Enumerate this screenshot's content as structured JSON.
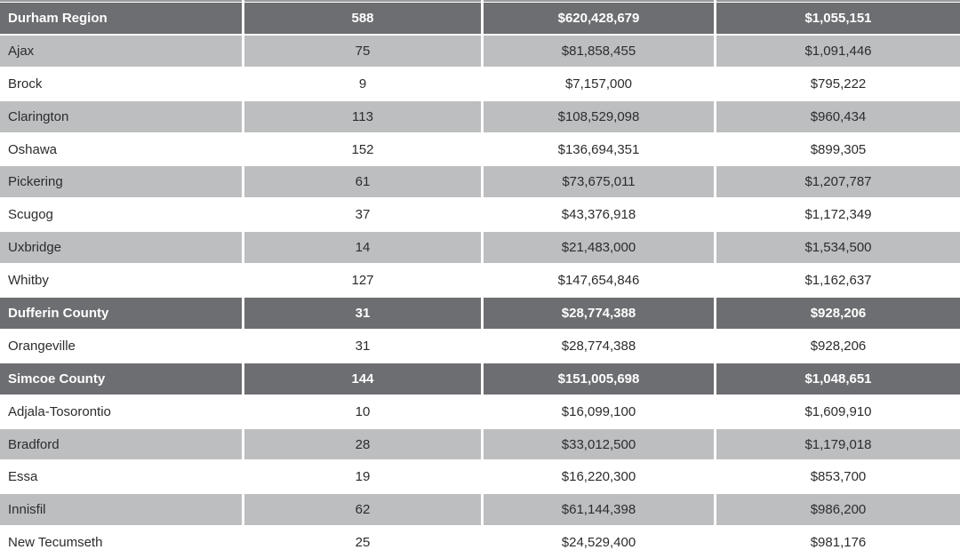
{
  "table": {
    "rows": [
      {
        "type": "header",
        "name": "Durham Region",
        "count": "588",
        "total": "$620,428,679",
        "average": "$1,055,151"
      },
      {
        "type": "shaded",
        "name": "Ajax",
        "count": "75",
        "total": "$81,858,455",
        "average": "$1,091,446"
      },
      {
        "type": "plain",
        "name": "Brock",
        "count": "9",
        "total": "$7,157,000",
        "average": "$795,222"
      },
      {
        "type": "shaded",
        "name": "Clarington",
        "count": "113",
        "total": "$108,529,098",
        "average": "$960,434"
      },
      {
        "type": "plain",
        "name": "Oshawa",
        "count": "152",
        "total": "$136,694,351",
        "average": "$899,305"
      },
      {
        "type": "shaded",
        "name": "Pickering",
        "count": "61",
        "total": "$73,675,011",
        "average": "$1,207,787"
      },
      {
        "type": "plain",
        "name": "Scugog",
        "count": "37",
        "total": "$43,376,918",
        "average": "$1,172,349"
      },
      {
        "type": "shaded",
        "name": "Uxbridge",
        "count": "14",
        "total": "$21,483,000",
        "average": "$1,534,500"
      },
      {
        "type": "plain",
        "name": "Whitby",
        "count": "127",
        "total": "$147,654,846",
        "average": "$1,162,637"
      },
      {
        "type": "header",
        "name": "Dufferin County",
        "count": "31",
        "total": "$28,774,388",
        "average": "$928,206"
      },
      {
        "type": "plain",
        "name": "Orangeville",
        "count": "31",
        "total": "$28,774,388",
        "average": "$928,206"
      },
      {
        "type": "header",
        "name": "Simcoe County",
        "count": "144",
        "total": "$151,005,698",
        "average": "$1,048,651"
      },
      {
        "type": "plain",
        "name": "Adjala-Tosorontio",
        "count": "10",
        "total": "$16,099,100",
        "average": "$1,609,910"
      },
      {
        "type": "shaded",
        "name": "Bradford",
        "count": "28",
        "total": "$33,012,500",
        "average": "$1,179,018"
      },
      {
        "type": "plain",
        "name": "Essa",
        "count": "19",
        "total": "$16,220,300",
        "average": "$853,700"
      },
      {
        "type": "shaded",
        "name": "Innisfil",
        "count": "62",
        "total": "$61,144,398",
        "average": "$986,200"
      },
      {
        "type": "plain",
        "name": "New Tecumseth",
        "count": "25",
        "total": "$24,529,400",
        "average": "$981,176"
      }
    ],
    "colors": {
      "header_bg": "#6d6e71",
      "shaded_bg": "#bcbec0",
      "plain_bg": "#ffffff",
      "header_text": "#ffffff",
      "body_text": "#2b2c2e",
      "separator": "#ffffff"
    }
  }
}
